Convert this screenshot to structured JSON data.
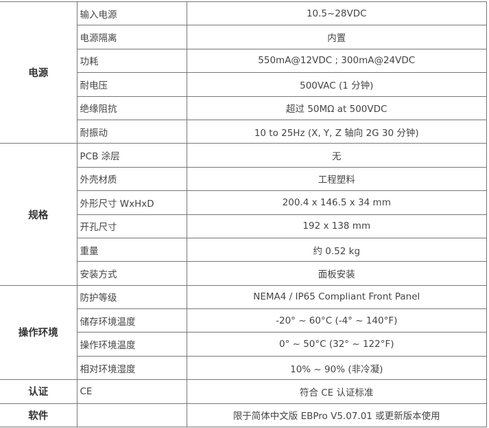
{
  "sections": [
    {
      "category": "电源",
      "rows": [
        {
          "name": "输入电源",
          "value": "10.5~28VDC"
        },
        {
          "name": "电源隔离",
          "value": "内置"
        },
        {
          "name": "功耗",
          "value": "550mA@12VDC ; 300mA@24VDC"
        },
        {
          "name": "耐电压",
          "value": "500VAC (1 分钟)"
        },
        {
          "name": "绝缘阻抗",
          "value": "超过 50MΩ at 500VDC"
        },
        {
          "name": "耐振动",
          "value": "10 to 25Hz (X, Y, Z 轴向 2G 30 分钟)"
        }
      ]
    },
    {
      "category": "规格",
      "rows": [
        {
          "name": "PCB 涂层",
          "value": "无"
        },
        {
          "name": "外壳材质",
          "value": "工程塑料"
        },
        {
          "name": "外形尺寸 WxHxD",
          "value": "200.4 x 146.5 x 34 mm"
        },
        {
          "name": "开孔尺寸",
          "value": "192 x 138 mm"
        },
        {
          "name": "重量",
          "value": "约 0.52 kg"
        },
        {
          "name": "安装方式",
          "value": "面板安装"
        }
      ]
    },
    {
      "category": "操作环境",
      "rows": [
        {
          "name": "防护等级",
          "value": "NEMA4 / IP65 Compliant Front Panel"
        },
        {
          "name": "储存环境温度",
          "value": "-20°  ~ 60°C (-4°  ~ 140°F)"
        },
        {
          "name": "操作环境温度",
          "value": "0°  ~ 50°C (32°  ~ 122°F)"
        },
        {
          "name": "相对环境湿度",
          "value": "10% ~ 90% (非冷凝)"
        }
      ]
    },
    {
      "category": "认证",
      "rows": [
        {
          "name": "CE",
          "value": "符合 CE 认证标准"
        }
      ]
    },
    {
      "category": "软件",
      "rows": [
        {
          "name": "",
          "value": "限于简体中文版  EBPro V5.07.01  或更新版本使用"
        }
      ]
    }
  ]
}
